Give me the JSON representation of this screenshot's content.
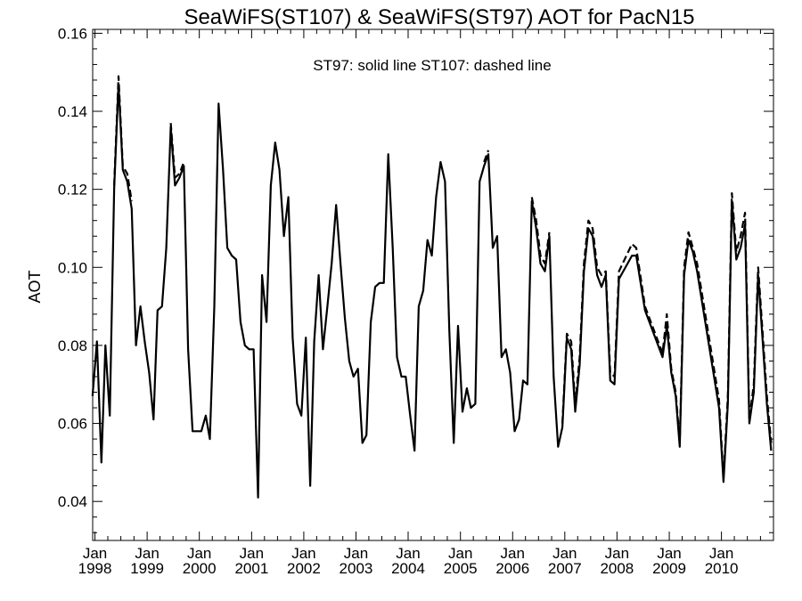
{
  "chart_data": {
    "type": "line",
    "title": "SeaWiFS(ST107) & SeaWiFS(ST97)  AOT for PacN15",
    "annotation": "ST97: solid line   ST107: dashed line",
    "xlabel": "",
    "ylabel": "AOT",
    "xlim": [
      "1997-12-16",
      "2010-12-31"
    ],
    "ylim": [
      0.03,
      0.161
    ],
    "yticks": [
      "0.04",
      "0.06",
      "0.08",
      "0.10",
      "0.12",
      "0.14",
      "0.16"
    ],
    "xticks": [
      {
        "month": "Jan",
        "year": "1998"
      },
      {
        "month": "Jan",
        "year": "1999"
      },
      {
        "month": "Jan",
        "year": "2000"
      },
      {
        "month": "Jan",
        "year": "2001"
      },
      {
        "month": "Jan",
        "year": "2002"
      },
      {
        "month": "Jan",
        "year": "2003"
      },
      {
        "month": "Jan",
        "year": "2004"
      },
      {
        "month": "Jan",
        "year": "2005"
      },
      {
        "month": "Jan",
        "year": "2006"
      },
      {
        "month": "Jan",
        "year": "2007"
      },
      {
        "month": "Jan",
        "year": "2008"
      },
      {
        "month": "Jan",
        "year": "2009"
      },
      {
        "month": "Jan",
        "year": "2010"
      }
    ],
    "grid": false,
    "series": [
      {
        "name": "ST97",
        "style": "solid",
        "color": "#000000",
        "points": [
          [
            "1997-12-15",
            0.067
          ],
          [
            "1998-01-15",
            0.081
          ],
          [
            "1998-02-15",
            0.05
          ],
          [
            "1998-03-15",
            0.08
          ],
          [
            "1998-04-15",
            0.062
          ],
          [
            "1998-05-15",
            0.12
          ],
          [
            "1998-06-15",
            0.147
          ],
          [
            "1998-07-15",
            0.125
          ],
          [
            "1998-08-15",
            0.122
          ],
          [
            "1998-09-15",
            0.115
          ],
          [
            "1998-10-15",
            0.08
          ],
          [
            "1998-11-15",
            0.09
          ],
          [
            "1998-12-15",
            0.081
          ],
          [
            "1999-01-15",
            0.073
          ],
          [
            "1999-02-15",
            0.061
          ],
          [
            "1999-03-15",
            0.089
          ],
          [
            "1999-04-15",
            0.09
          ],
          [
            "1999-05-15",
            0.105
          ],
          [
            "1999-06-15",
            0.136
          ],
          [
            "1999-07-15",
            0.121
          ],
          [
            "1999-08-15",
            0.123
          ],
          [
            "1999-09-15",
            0.126
          ],
          [
            "1999-10-15",
            0.079
          ],
          [
            "1999-11-15",
            0.058
          ],
          [
            "1999-12-15",
            0.058
          ],
          [
            "2000-01-15",
            0.058
          ],
          [
            "2000-02-15",
            0.062
          ],
          [
            "2000-03-15",
            0.056
          ],
          [
            "2000-04-15",
            0.09
          ],
          [
            "2000-05-15",
            0.142
          ],
          [
            "2000-06-15",
            0.125
          ],
          [
            "2000-07-15",
            0.105
          ],
          [
            "2000-08-15",
            0.103
          ],
          [
            "2000-09-15",
            0.102
          ],
          [
            "2000-10-15",
            0.086
          ],
          [
            "2000-11-15",
            0.08
          ],
          [
            "2000-12-15",
            0.079
          ],
          [
            "2001-01-15",
            0.079
          ],
          [
            "2001-02-15",
            0.041
          ],
          [
            "2001-03-15",
            0.098
          ],
          [
            "2001-04-15",
            0.086
          ],
          [
            "2001-05-15",
            0.121
          ],
          [
            "2001-06-15",
            0.132
          ],
          [
            "2001-07-15",
            0.125
          ],
          [
            "2001-08-15",
            0.108
          ],
          [
            "2001-09-15",
            0.118
          ],
          [
            "2001-10-15",
            0.082
          ],
          [
            "2001-11-15",
            0.065
          ],
          [
            "2001-12-15",
            0.062
          ],
          [
            "2002-01-15",
            0.082
          ],
          [
            "2002-02-15",
            0.044
          ],
          [
            "2002-03-15",
            0.081
          ],
          [
            "2002-04-15",
            0.098
          ],
          [
            "2002-05-15",
            0.079
          ],
          [
            "2002-06-15",
            0.09
          ],
          [
            "2002-07-15",
            0.101
          ],
          [
            "2002-08-15",
            0.116
          ],
          [
            "2002-09-15",
            0.101
          ],
          [
            "2002-10-15",
            0.087
          ],
          [
            "2002-11-15",
            0.076
          ],
          [
            "2002-12-15",
            0.072
          ],
          [
            "2003-01-15",
            0.074
          ],
          [
            "2003-02-15",
            0.055
          ],
          [
            "2003-03-15",
            0.057
          ],
          [
            "2003-04-15",
            0.086
          ],
          [
            "2003-05-15",
            0.095
          ],
          [
            "2003-06-15",
            0.096
          ],
          [
            "2003-07-15",
            0.096
          ],
          [
            "2003-08-15",
            0.129
          ],
          [
            "2003-09-15",
            0.105
          ],
          [
            "2003-10-15",
            0.077
          ],
          [
            "2003-11-15",
            0.072
          ],
          [
            "2003-12-15",
            0.072
          ],
          [
            "2004-01-15",
            0.062
          ],
          [
            "2004-02-15",
            0.053
          ],
          [
            "2004-03-15",
            0.09
          ],
          [
            "2004-04-15",
            0.094
          ],
          [
            "2004-05-15",
            0.107
          ],
          [
            "2004-06-15",
            0.103
          ],
          [
            "2004-07-15",
            0.118
          ],
          [
            "2004-08-15",
            0.127
          ],
          [
            "2004-09-15",
            0.122
          ],
          [
            "2004-10-15",
            0.084
          ],
          [
            "2004-11-15",
            0.055
          ],
          [
            "2004-12-15",
            0.085
          ],
          [
            "2005-01-15",
            0.063
          ],
          [
            "2005-02-15",
            0.069
          ],
          [
            "2005-03-15",
            0.064
          ],
          [
            "2005-04-15",
            0.065
          ],
          [
            "2005-05-15",
            0.122
          ],
          [
            "2005-06-15",
            0.126
          ],
          [
            "2005-07-15",
            0.129
          ],
          [
            "2005-08-15",
            0.105
          ],
          [
            "2005-09-15",
            0.108
          ],
          [
            "2005-10-15",
            0.077
          ],
          [
            "2005-11-15",
            0.079
          ],
          [
            "2005-12-15",
            0.073
          ],
          [
            "2006-01-15",
            0.058
          ],
          [
            "2006-02-15",
            0.061
          ],
          [
            "2006-03-15",
            0.071
          ],
          [
            "2006-04-15",
            0.07
          ],
          [
            "2006-05-15",
            0.117
          ],
          [
            "2006-06-15",
            0.11
          ],
          [
            "2006-07-15",
            0.101
          ],
          [
            "2006-08-15",
            0.099
          ],
          [
            "2006-09-15",
            0.108
          ],
          [
            "2006-10-15",
            0.072
          ],
          [
            "2006-11-15",
            0.054
          ],
          [
            "2006-12-15",
            0.059
          ],
          [
            "2007-01-15",
            0.082
          ],
          [
            "2007-02-15",
            0.079
          ],
          [
            "2007-03-15",
            0.063
          ],
          [
            "2007-04-15",
            0.075
          ],
          [
            "2007-05-15",
            0.099
          ],
          [
            "2007-06-15",
            0.11
          ],
          [
            "2007-07-15",
            0.108
          ],
          [
            "2007-08-15",
            0.098
          ],
          [
            "2007-09-15",
            0.095
          ],
          [
            "2007-10-15",
            0.098
          ],
          [
            "2007-11-15",
            0.071
          ],
          [
            "2007-12-15",
            0.07
          ],
          [
            "2008-01-15",
            0.097
          ],
          [
            "2008-04-15",
            0.103
          ],
          [
            "2008-05-15",
            0.103
          ],
          [
            "2008-07-15",
            0.089
          ],
          [
            "2008-11-15",
            0.077
          ],
          [
            "2008-12-15",
            0.085
          ],
          [
            "2009-01-15",
            0.073
          ],
          [
            "2009-02-15",
            0.067
          ],
          [
            "2009-03-15",
            0.054
          ],
          [
            "2009-04-15",
            0.098
          ],
          [
            "2009-05-15",
            0.107
          ],
          [
            "2009-06-15",
            0.104
          ],
          [
            "2009-07-15",
            0.099
          ],
          [
            "2009-12-15",
            0.064
          ],
          [
            "2010-01-15",
            0.045
          ],
          [
            "2010-02-15",
            0.065
          ],
          [
            "2010-03-15",
            0.117
          ],
          [
            "2010-04-15",
            0.102
          ],
          [
            "2010-05-15",
            0.105
          ],
          [
            "2010-06-15",
            0.111
          ],
          [
            "2010-07-15",
            0.06
          ],
          [
            "2010-08-15",
            0.068
          ],
          [
            "2010-09-15",
            0.098
          ],
          [
            "2010-10-15",
            0.082
          ],
          [
            "2010-11-15",
            0.065
          ],
          [
            "2010-12-15",
            0.053
          ]
        ]
      },
      {
        "name": "ST107",
        "style": "dashed",
        "color": "#000000",
        "points": [
          [
            "1998-05-15",
            0.121
          ],
          [
            "1998-06-15",
            0.149
          ],
          [
            "1998-07-15",
            0.126
          ],
          [
            "1998-08-15",
            0.124
          ],
          [
            "1998-09-15",
            0.117
          ],
          [
            "1999-06-15",
            0.137
          ],
          [
            "1999-07-15",
            0.123
          ],
          [
            "1999-08-15",
            0.124
          ],
          [
            "1999-09-15",
            0.127
          ],
          [
            "2005-06-15",
            0.127
          ],
          [
            "2005-07-15",
            0.13
          ],
          [
            "2006-05-15",
            0.118
          ],
          [
            "2006-06-15",
            0.112
          ],
          [
            "2006-07-15",
            0.103
          ],
          [
            "2006-08-15",
            0.101
          ],
          [
            "2006-09-15",
            0.109
          ],
          [
            "2006-12-15",
            0.06
          ],
          [
            "2007-01-15",
            0.083
          ],
          [
            "2007-02-15",
            0.081
          ],
          [
            "2007-03-15",
            0.065
          ],
          [
            "2007-04-15",
            0.077
          ],
          [
            "2007-05-15",
            0.101
          ],
          [
            "2007-06-15",
            0.112
          ],
          [
            "2007-07-15",
            0.11
          ],
          [
            "2007-08-15",
            0.1
          ],
          [
            "2007-09-15",
            0.098
          ],
          [
            "2007-10-15",
            0.099
          ],
          [
            "2007-11-15",
            0.073
          ],
          [
            "2007-12-15",
            0.072
          ],
          [
            "2008-01-15",
            0.099
          ],
          [
            "2008-04-15",
            0.106
          ],
          [
            "2008-05-15",
            0.105
          ],
          [
            "2008-07-15",
            0.09
          ],
          [
            "2008-11-15",
            0.078
          ],
          [
            "2008-12-15",
            0.088
          ],
          [
            "2009-01-15",
            0.074
          ],
          [
            "2009-02-15",
            0.068
          ],
          [
            "2009-03-15",
            0.055
          ],
          [
            "2009-04-15",
            0.1
          ],
          [
            "2009-05-15",
            0.109
          ],
          [
            "2009-06-15",
            0.105
          ],
          [
            "2009-07-15",
            0.101
          ],
          [
            "2009-12-15",
            0.066
          ],
          [
            "2010-01-15",
            0.046
          ],
          [
            "2010-02-15",
            0.067
          ],
          [
            "2010-03-15",
            0.119
          ],
          [
            "2010-04-15",
            0.104
          ],
          [
            "2010-05-15",
            0.108
          ],
          [
            "2010-06-15",
            0.114
          ],
          [
            "2010-07-15",
            0.061
          ],
          [
            "2010-08-15",
            0.07
          ],
          [
            "2010-09-15",
            0.1
          ],
          [
            "2010-10-15",
            0.084
          ],
          [
            "2010-11-15",
            0.067
          ],
          [
            "2010-12-15",
            0.055
          ]
        ]
      }
    ]
  }
}
